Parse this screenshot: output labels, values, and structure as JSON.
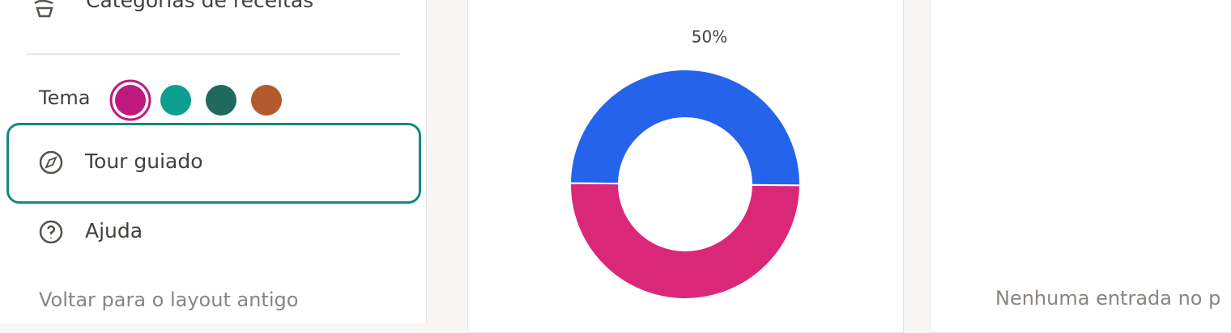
{
  "sidebar": {
    "top_item": "Categorias de receitas",
    "theme_label": "Tema",
    "items": [
      "Tour guiado",
      "Ajuda"
    ],
    "old_layout_link": "Voltar para o layout antigo"
  },
  "chart_data": {
    "type": "donut",
    "label": "50%",
    "segments": [
      {
        "color": "#2563eb",
        "value": 50
      },
      {
        "color": "#db2777",
        "value": 50
      }
    ]
  },
  "empty_panel": {
    "message": "Nenhuma entrada no p"
  }
}
